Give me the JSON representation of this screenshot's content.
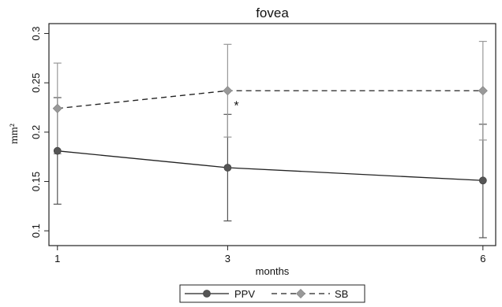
{
  "chart_data": {
    "type": "line",
    "title": "fovea",
    "xlabel": "months",
    "ylabel": "mm²",
    "x": [
      1,
      3,
      6
    ],
    "x_tick_labels": [
      "1",
      "3",
      "6"
    ],
    "xlim": [
      0.9,
      6.15
    ],
    "ylim": [
      0.085,
      0.31
    ],
    "y_ticks": [
      0.1,
      0.15,
      0.2,
      0.25,
      0.3
    ],
    "y_tick_labels": [
      "0.1",
      "0.15",
      "0.2",
      "0.25",
      "0.3"
    ],
    "grid": false,
    "legend_position": "bottom",
    "series": [
      {
        "name": "PPV",
        "style": "solid",
        "color": "#555555",
        "marker": "circle",
        "values": [
          0.181,
          0.164,
          0.151
        ],
        "error_low": [
          0.127,
          0.11,
          0.093
        ],
        "error_high": [
          0.235,
          0.218,
          0.208
        ]
      },
      {
        "name": "SB",
        "style": "dashed",
        "color": "#999999",
        "marker": "diamond",
        "values": [
          0.224,
          0.242,
          0.242
        ],
        "error_low": [
          0.178,
          0.195,
          0.192
        ],
        "error_high": [
          0.27,
          0.289,
          0.292
        ]
      }
    ],
    "annotations": [
      {
        "text": "*",
        "x": 3,
        "y": 0.226
      }
    ]
  }
}
